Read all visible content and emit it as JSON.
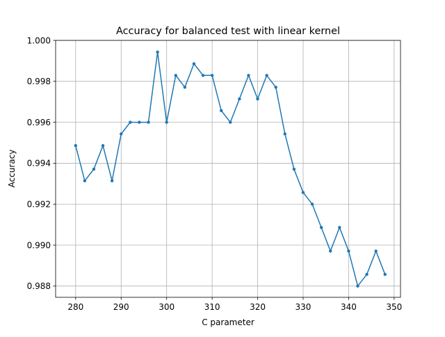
{
  "chart_data": {
    "type": "line",
    "title": "Accuracy for balanced test with linear kernel",
    "xlabel": "C parameter",
    "ylabel": "Accuracy",
    "xlim": [
      275.6,
      351.4
    ],
    "ylim": [
      0.98745,
      1.0
    ],
    "xticks": [
      280,
      290,
      300,
      310,
      320,
      330,
      340,
      350
    ],
    "yticks": [
      0.988,
      0.99,
      0.992,
      0.994,
      0.996,
      0.998,
      1.0
    ],
    "ytick_labels": [
      "0.988",
      "0.990",
      "0.992",
      "0.994",
      "0.996",
      "0.998",
      "1.000"
    ],
    "grid": true,
    "marker": "dot",
    "series": [
      {
        "color": "#1f77b4",
        "x": [
          280,
          282,
          284,
          286,
          288,
          290,
          292,
          294,
          296,
          298,
          300,
          302,
          304,
          306,
          308,
          310,
          312,
          314,
          316,
          318,
          320,
          322,
          324,
          326,
          328,
          330,
          332,
          334,
          336,
          338,
          340,
          342,
          344,
          346,
          348
        ],
        "y": [
          0.99486,
          0.99314,
          0.99371,
          0.99486,
          0.99314,
          0.99543,
          0.996,
          0.996,
          0.996,
          0.99943,
          0.996,
          0.99829,
          0.99771,
          0.99886,
          0.99829,
          0.99829,
          0.99657,
          0.996,
          0.99714,
          0.99829,
          0.99714,
          0.99829,
          0.99771,
          0.99543,
          0.99371,
          0.99257,
          0.992,
          0.99086,
          0.98971,
          0.99086,
          0.98971,
          0.988,
          0.98857,
          0.98971,
          0.98857
        ]
      }
    ]
  }
}
